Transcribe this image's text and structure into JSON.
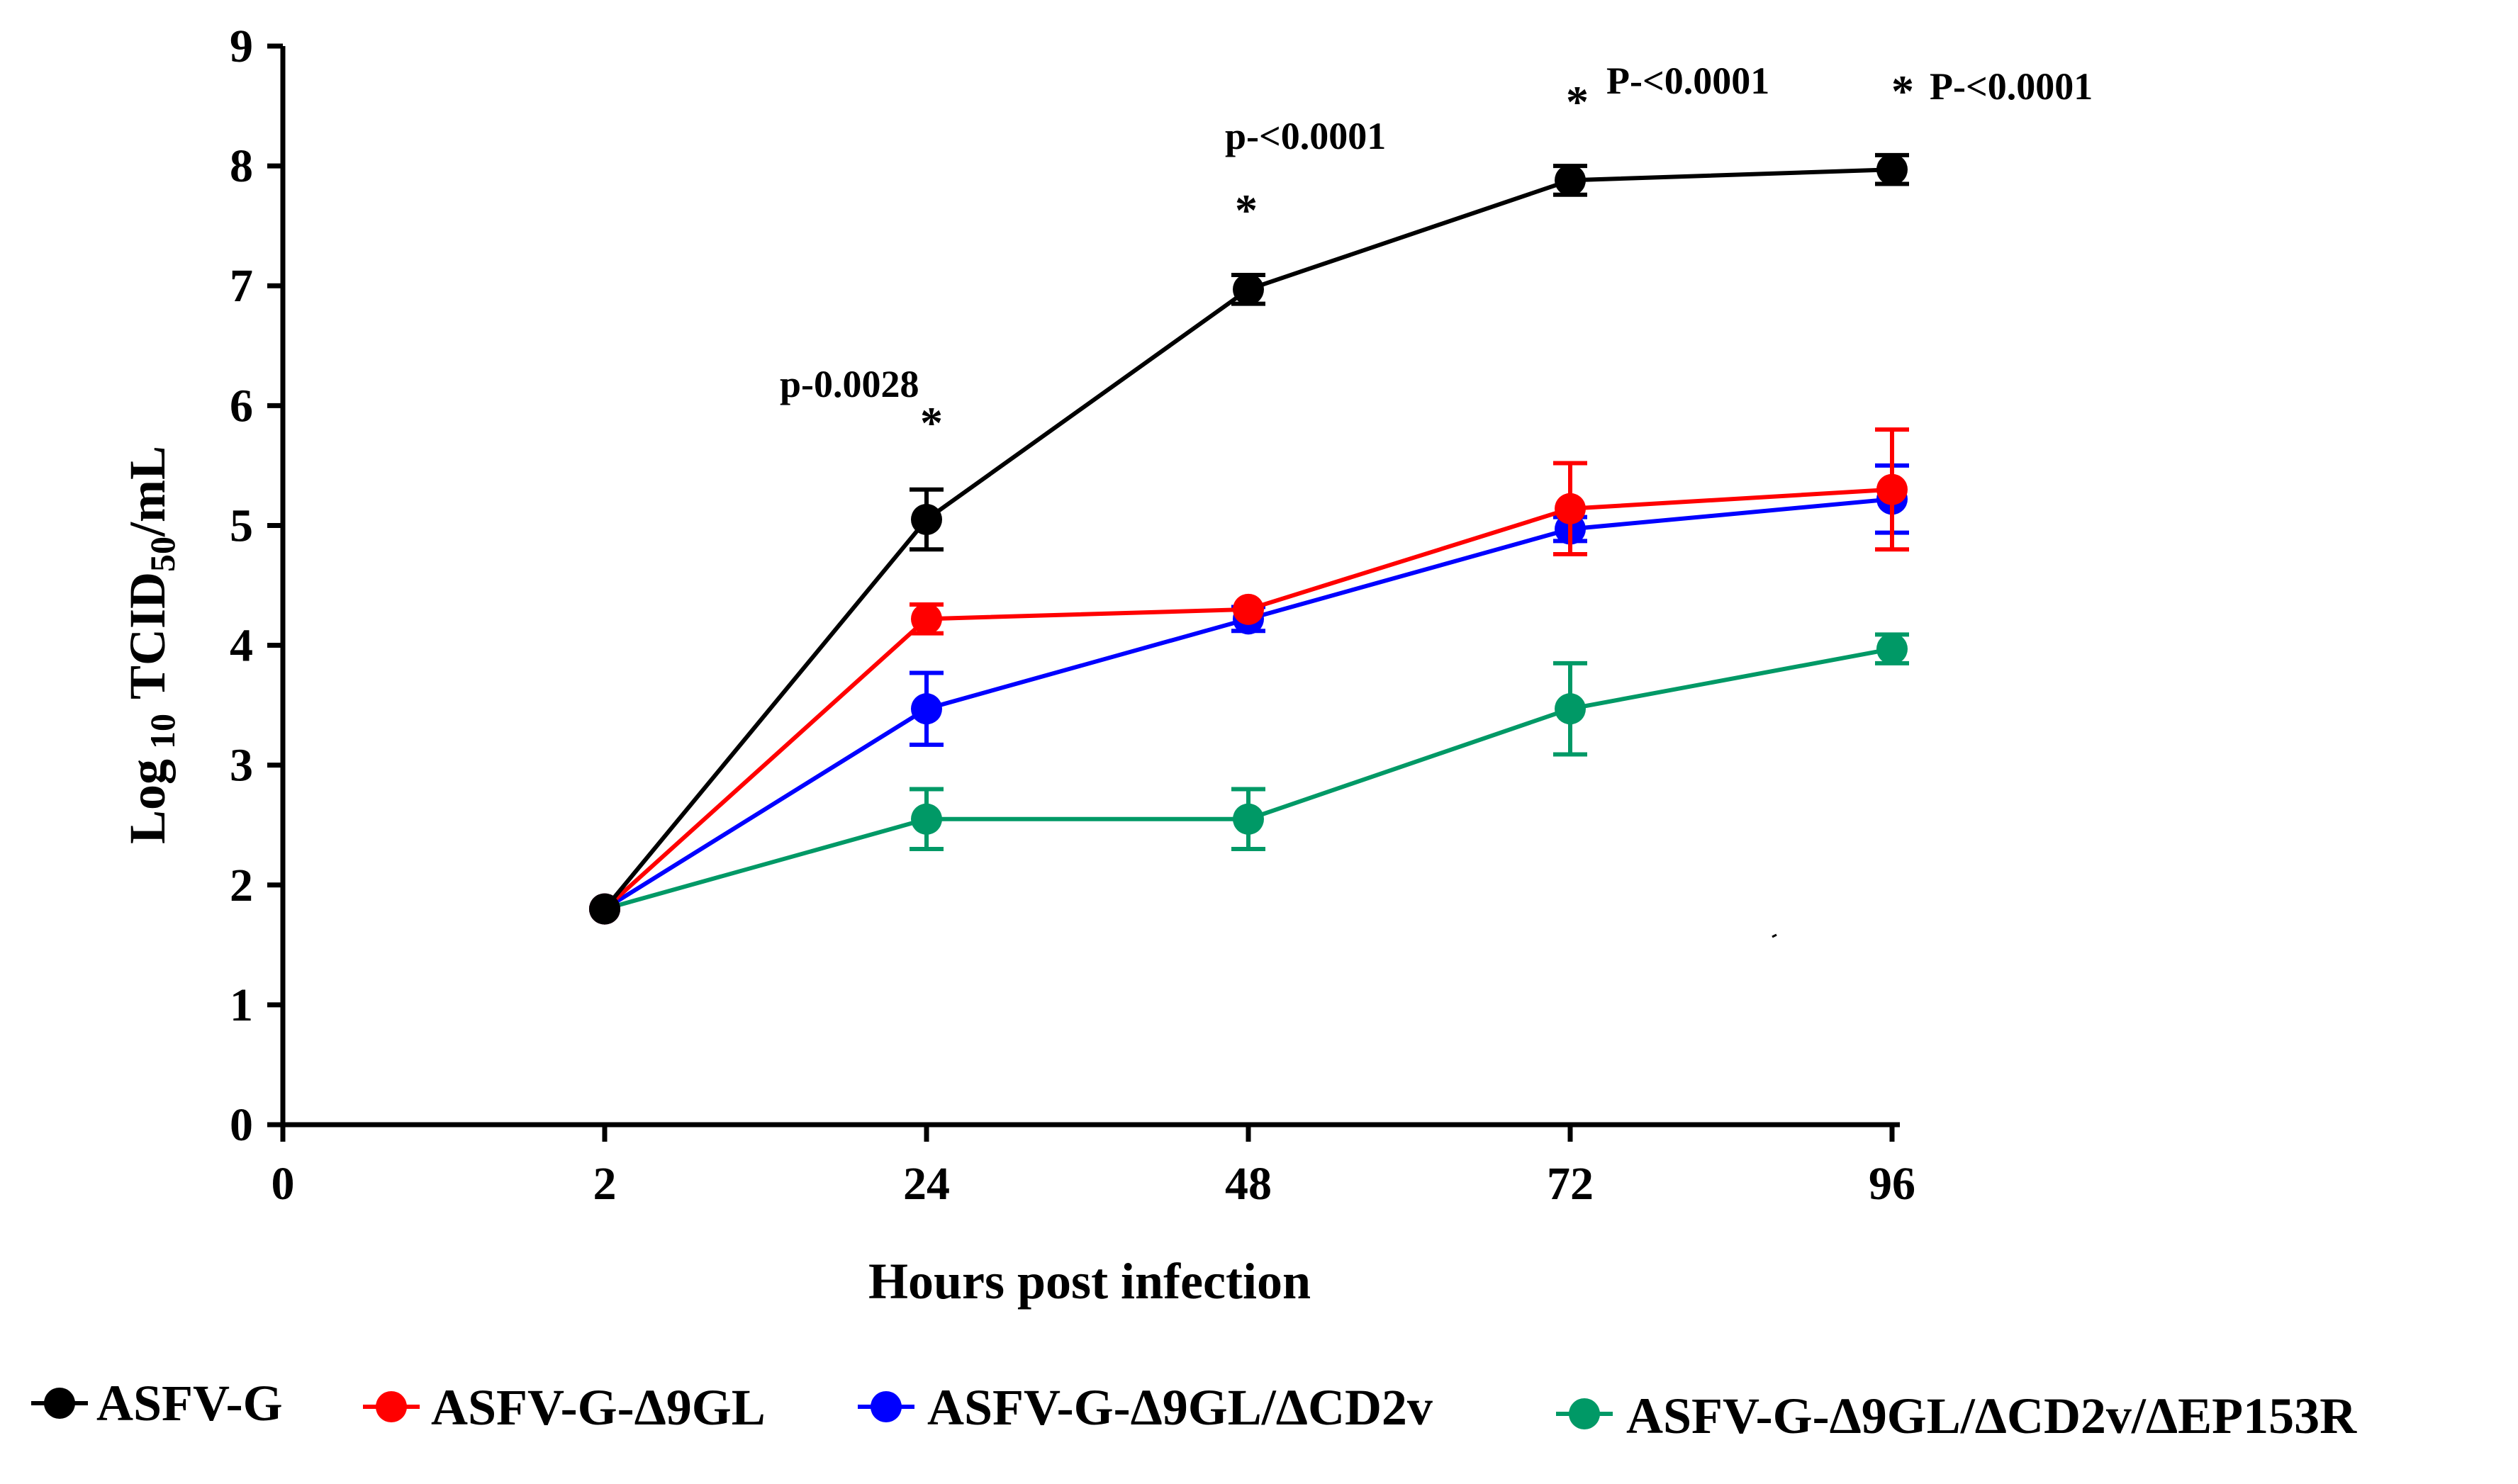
{
  "chart_data": {
    "type": "line",
    "title": "",
    "xlabel": "Hours post infection",
    "ylabel_main": "Log",
    "ylabel_sub1": "10",
    "ylabel_mid": "TCID",
    "ylabel_sub2": "50",
    "ylabel_end": "/mL",
    "x_tick_labels": [
      "0",
      "2",
      "24",
      "48",
      "72",
      "96"
    ],
    "y_ticks": [
      0,
      1,
      2,
      3,
      4,
      5,
      6,
      7,
      8,
      9
    ],
    "ylim": [
      0,
      9
    ],
    "legend_position": "bottom",
    "series": [
      {
        "name": "ASFV-G",
        "color": "#000000",
        "values": [
          1.8,
          5.05,
          6.97,
          7.88,
          7.97
        ],
        "errors": [
          0.05,
          0.25,
          0.12,
          0.12,
          0.12
        ]
      },
      {
        "name": "ASFV-G-Δ9GL",
        "color": "#ff0000",
        "values": [
          1.8,
          4.22,
          4.3,
          5.14,
          5.3
        ],
        "errors": [
          0.05,
          0.12,
          0.06,
          0.38,
          0.5
        ]
      },
      {
        "name": "ASFV-G-Δ9GL/ΔCD2v",
        "color": "#0000ff",
        "values": [
          1.8,
          3.47,
          4.22,
          4.97,
          5.22
        ],
        "errors": [
          0.05,
          0.3,
          0.1,
          0.1,
          0.28
        ]
      },
      {
        "name": "ASFV-G-Δ9GL/ΔCD2v/ΔEP153R",
        "color": "#009966",
        "values": [
          1.8,
          2.55,
          2.55,
          3.47,
          3.97
        ],
        "errors": [
          0.05,
          0.25,
          0.25,
          0.38,
          0.12
        ]
      }
    ],
    "annotations": [
      {
        "text": "p-0.0028",
        "star": "*",
        "point": 1
      },
      {
        "text": "p-<0.0001",
        "star": "*",
        "point": 2
      },
      {
        "text": "P-<0.0001",
        "star": "*",
        "point": 3
      },
      {
        "text": "P-<0.0001",
        "star": "*",
        "point": 4
      }
    ]
  }
}
